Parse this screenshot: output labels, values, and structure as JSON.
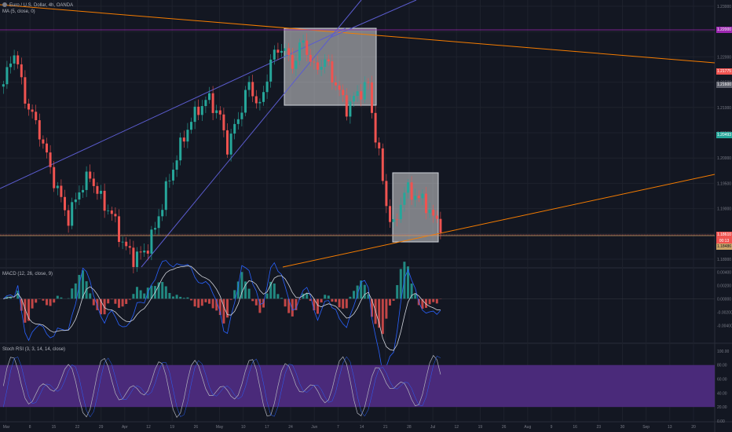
{
  "header": {
    "symbol": "Euro / U.S. Dollar",
    "interval": "4h",
    "exchange": "OANDA",
    "ma_legend": "MA (5, close, 0)"
  },
  "macd_legend": "MACD (12, 26, close, 9)",
  "stochrsi_legend": "Stoch RSI (3, 3, 14, 14, close)",
  "price_tags": {
    "top": "1.22000",
    "red": "1.21775",
    "gray": "1.21600",
    "green": "1.20493",
    "current": "1.18610",
    "current_sub": "00:13",
    "tan": "1.18486"
  },
  "colors": {
    "up": "#26a69a",
    "down": "#ef5350",
    "purple_line": "#9c27b0",
    "orange_line": "#f57c00",
    "blue_line": "#5b5ccf",
    "stoch_band": "#4a2a7a",
    "background": "#131722"
  },
  "chart_data": [
    {
      "type": "candlestick",
      "title": "Euro / U.S. Dollar, 4h, OANDA",
      "x_tick_labels": [
        "Mar",
        "8",
        "15",
        "22",
        "29",
        "Apr",
        "12",
        "19",
        "26",
        "May",
        "10",
        "17",
        "24",
        "Jun",
        "7",
        "14",
        "21",
        "28",
        "Jul",
        "12",
        "19",
        "26",
        "Aug",
        "9",
        "16",
        "23",
        "30",
        "Sep",
        "13",
        "20"
      ],
      "y_tick_labels": [
        "1.23000",
        "1.22500",
        "1.22000",
        "1.21500",
        "1.21000",
        "1.20500",
        "1.20000",
        "1.19500",
        "1.19000",
        "1.18500",
        "1.18000"
      ],
      "ylim": [
        1.177,
        1.2325
      ],
      "close_series_waypoints": [
        [
          0,
          1.215
        ],
        [
          3,
          1.222
        ],
        [
          6,
          1.212
        ],
        [
          10,
          1.205
        ],
        [
          14,
          1.195
        ],
        [
          18,
          1.187
        ],
        [
          21,
          1.193
        ],
        [
          24,
          1.196
        ],
        [
          27,
          1.191
        ],
        [
          30,
          1.188
        ],
        [
          33,
          1.182
        ],
        [
          36,
          1.179
        ],
        [
          39,
          1.18
        ],
        [
          42,
          1.185
        ],
        [
          45,
          1.193
        ],
        [
          48,
          1.2
        ],
        [
          51,
          1.206
        ],
        [
          54,
          1.21
        ],
        [
          57,
          1.212
        ],
        [
          60,
          1.208
        ],
        [
          62,
          1.202
        ],
        [
          65,
          1.208
        ],
        [
          68,
          1.215
        ],
        [
          71,
          1.21
        ],
        [
          74,
          1.22
        ],
        [
          77,
          1.223
        ],
        [
          80,
          1.219
        ],
        [
          83,
          1.224
        ],
        [
          86,
          1.218
        ],
        [
          89,
          1.22
        ],
        [
          92,
          1.215
        ],
        [
          95,
          1.21
        ],
        [
          98,
          1.213
        ],
        [
          101,
          1.215
        ],
        [
          102,
          1.209
        ],
        [
          104,
          1.2
        ],
        [
          106,
          1.19
        ],
        [
          108,
          1.185
        ],
        [
          111,
          1.193
        ],
        [
          114,
          1.192
        ],
        [
          117,
          1.19
        ],
        [
          120,
          1.186
        ],
        [
          121,
          1.1861
        ]
      ],
      "macd_ylim": [
        -0.0065,
        0.0045
      ],
      "macd_tick_labels": [
        "0.00400",
        "0.00200",
        "0.00000",
        "-0.00200",
        "-0.00400"
      ],
      "stochrsi_ylim": [
        0,
        110
      ],
      "stochrsi_tick_labels": [
        "100.00",
        "80.00",
        "60.00",
        "40.00",
        "20.00",
        "0.00"
      ],
      "stochrsi_band": [
        20,
        80
      ]
    }
  ]
}
